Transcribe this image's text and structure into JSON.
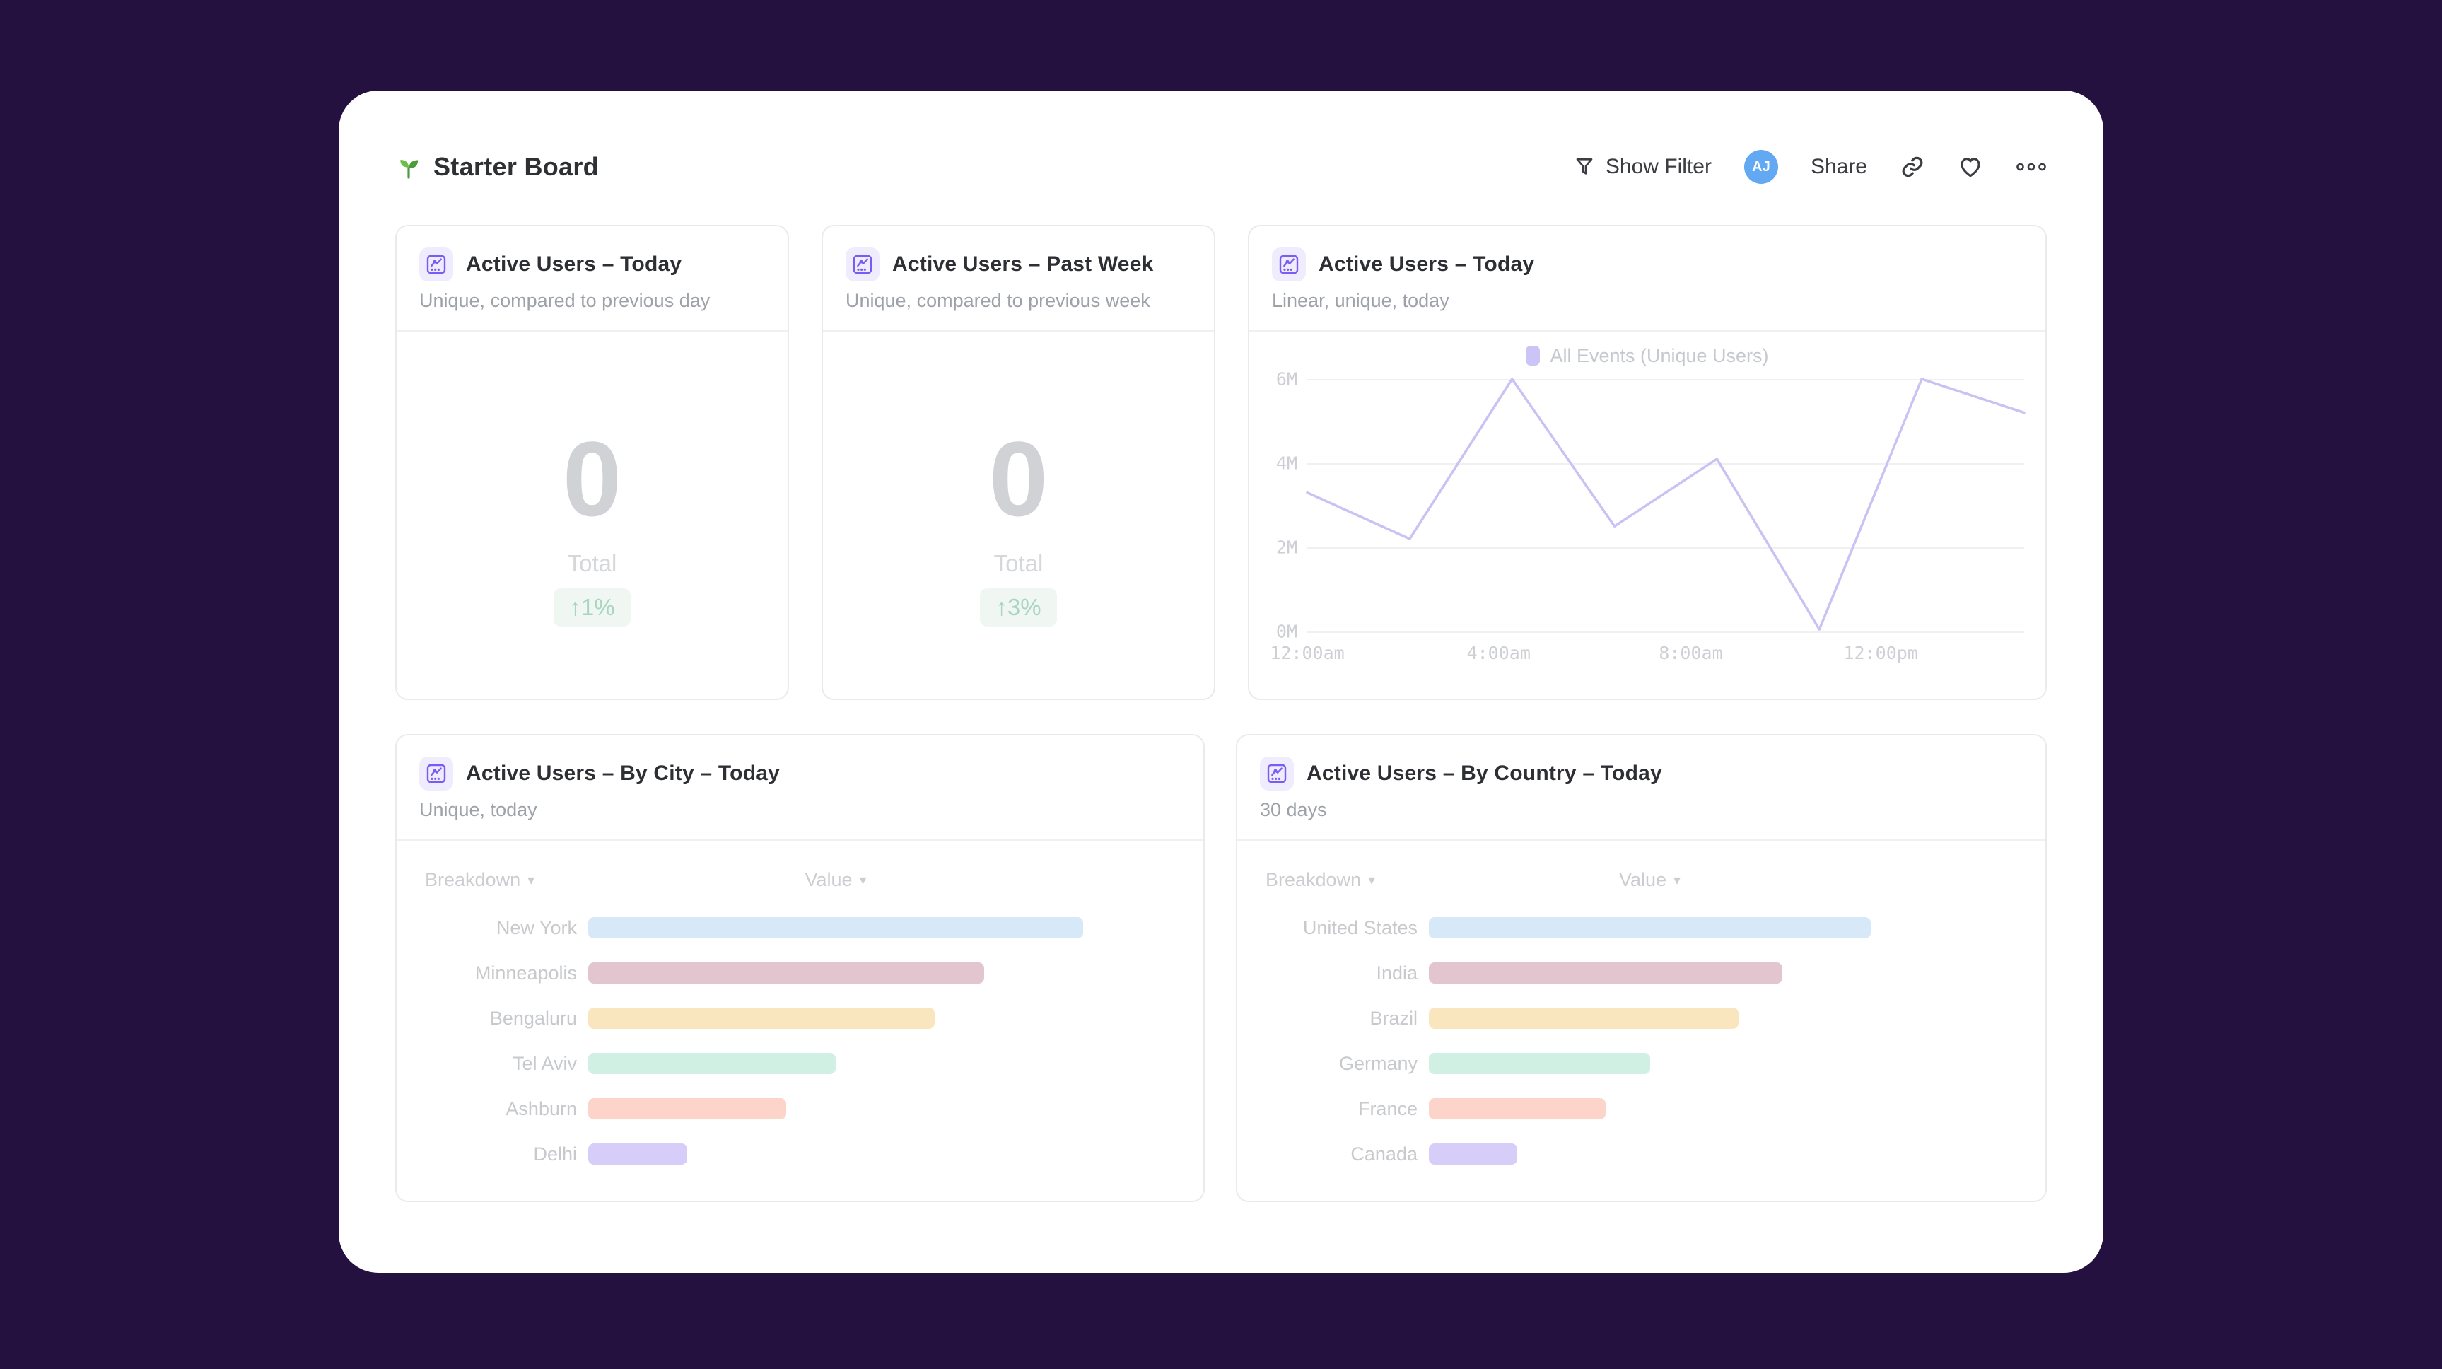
{
  "ui": {
    "caret": "▾"
  },
  "colors": {
    "page_bg": "#241140",
    "avatar_bg": "#63A8F2",
    "accent_purple": "#7A5CF5",
    "icon_chip_bg": "#EFECFE",
    "badge_text": "#A8D5BF",
    "badge_bg": "#F0F7F3",
    "line": "#C9C3F4"
  },
  "icons": [
    "seedling-icon",
    "filter-icon",
    "link-icon",
    "heart-icon",
    "more-dots-icon",
    "chart-icon",
    "caret-down-icon"
  ],
  "header": {
    "title": "Starter Board",
    "show_filter_label": "Show Filter",
    "avatar_initials": "AJ",
    "share_label": "Share"
  },
  "cards": {
    "today": {
      "title": "Active Users – Today",
      "subtitle": "Unique, compared to previous day",
      "value": "0",
      "value_label": "Total",
      "delta": "↑1%"
    },
    "past_week": {
      "title": "Active Users – Past Week",
      "subtitle": "Unique, compared to previous week",
      "value": "0",
      "value_label": "Total",
      "delta": "↑3%"
    },
    "line_chart": {
      "title": "Active Users – Today",
      "subtitle": "Linear, unique, today"
    },
    "by_city": {
      "title": "Active Users – By City – Today",
      "subtitle": "Unique, today",
      "col_breakdown": "Breakdown",
      "col_value": "Value"
    },
    "by_country": {
      "title": "Active Users – By Country – Today",
      "subtitle": "30 days",
      "col_breakdown": "Breakdown",
      "col_value": "Value"
    }
  },
  "chart_data": [
    {
      "id": "active-users-today-line",
      "type": "line",
      "title": "Active Users – Today",
      "series": [
        {
          "name": "All Events (Unique Users)",
          "values_millions": [
            3.3,
            2.2,
            6.0,
            2.5,
            4.1,
            0.05,
            6.0,
            5.2
          ]
        }
      ],
      "x_points_estimated": [
        "12:00am",
        "2:00am",
        "4:00am",
        "6:00am",
        "8:00am",
        "10:00am",
        "12:00pm",
        "2:00pm"
      ],
      "x_tick_labels": [
        "12:00am",
        "4:00am",
        "8:00am",
        "12:00pm"
      ],
      "x_tick_pos": [
        0,
        0.267,
        0.535,
        0.8
      ],
      "y_tick_labels": [
        "6M",
        "4M",
        "2M",
        "0M"
      ],
      "ylim_millions": [
        0,
        6
      ],
      "grid": "horizontal",
      "legend_position": "top-center",
      "line_color": "#C9C3F4"
    },
    {
      "id": "active-users-by-city",
      "type": "bar",
      "orientation": "horizontal",
      "categories": [
        "New York",
        "Minneapolis",
        "Bengaluru",
        "Tel Aviv",
        "Ashburn",
        "Delhi"
      ],
      "values_pct": [
        100,
        80,
        70,
        50,
        40,
        20
      ],
      "colors": [
        "#D7E8F8",
        "#E3C5CF",
        "#FAE6BE",
        "#CFF0E3",
        "#FCD4CA",
        "#D6CEF9"
      ],
      "value_labels_shown": false
    },
    {
      "id": "active-users-by-country",
      "type": "bar",
      "orientation": "horizontal",
      "categories": [
        "United States",
        "India",
        "Brazil",
        "Germany",
        "France",
        "Canada"
      ],
      "values_pct": [
        100,
        80,
        70,
        50,
        40,
        20
      ],
      "colors": [
        "#D7E8F8",
        "#E3C5CF",
        "#FAE6BE",
        "#CFF0E3",
        "#FCD4CA",
        "#D6CEF9"
      ],
      "value_labels_shown": false
    }
  ]
}
